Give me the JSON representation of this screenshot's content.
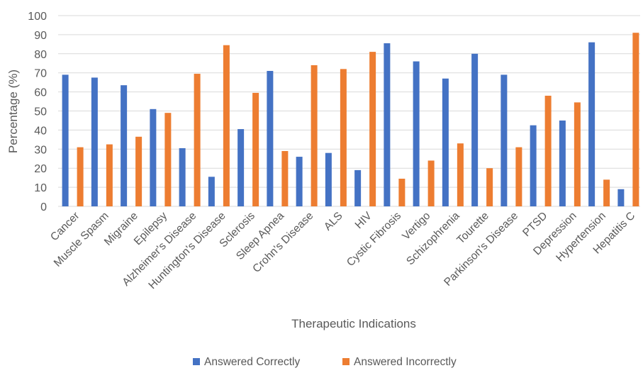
{
  "chart_data": {
    "type": "bar",
    "title": "",
    "xlabel": "Therapeutic Indications",
    "ylabel": "Percentage (%)",
    "ylim": [
      0,
      100
    ],
    "yticks": [
      0,
      10,
      20,
      30,
      40,
      50,
      60,
      70,
      80,
      90,
      100
    ],
    "grid": true,
    "legend_position": "bottom",
    "categories": [
      "Cancer",
      "Muscle Spasm",
      "Migraine",
      "Epilepsy",
      "Alzheimer's Disease",
      "Huntington's Disease",
      "Sclerosis",
      "Sleep Apnea",
      "Crohn's Disease",
      "ALS",
      "HIV",
      "Cystic Fibrosis",
      "Vertigo",
      "Schizophrenia",
      "Tourette",
      "Parkinson's Disease",
      "PTSD",
      "Depression",
      "Hypertension",
      "Hepatitis C"
    ],
    "series": [
      {
        "name": "Answered Correctly",
        "color": "#4472C4",
        "values": [
          69,
          67.5,
          63.5,
          51,
          30.5,
          15.5,
          40.5,
          71,
          26,
          28,
          19,
          85.5,
          76,
          67,
          80,
          69,
          42.5,
          45,
          86,
          9
        ]
      },
      {
        "name": "Answered Incorrectly",
        "color": "#ED7D31",
        "values": [
          31,
          32.5,
          36.5,
          49,
          69.5,
          84.5,
          59.5,
          29,
          74,
          72,
          81,
          14.5,
          24,
          33,
          20,
          31,
          58,
          54.5,
          14,
          91
        ]
      }
    ]
  }
}
